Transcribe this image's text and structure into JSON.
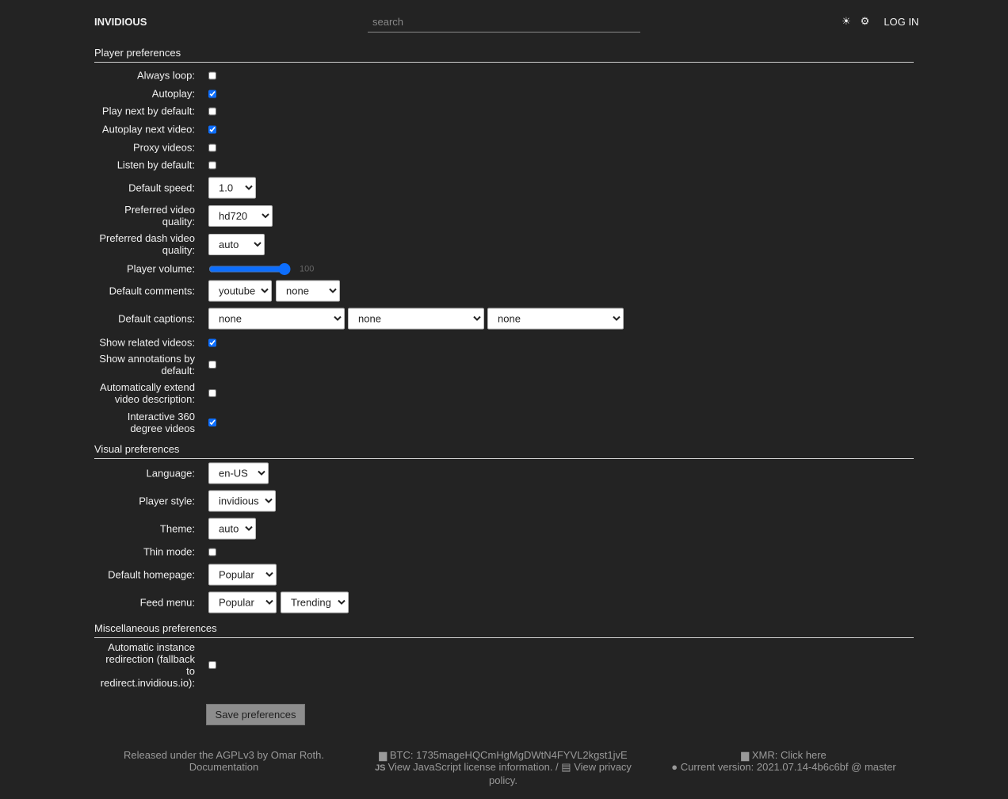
{
  "header": {
    "brand": "INVIDIOUS",
    "search_placeholder": "search",
    "theme_icon": "sun-icon",
    "settings_icon": "gear-icon",
    "theme_glyph": "☀",
    "settings_glyph": "⚙",
    "login": "LOG IN"
  },
  "player": {
    "title": "Player preferences",
    "always_loop": {
      "label": "Always loop:",
      "checked": false
    },
    "autoplay": {
      "label": "Autoplay:",
      "checked": true
    },
    "play_next": {
      "label": "Play next by default:",
      "checked": false
    },
    "autoplay_next": {
      "label": "Autoplay next video:",
      "checked": true
    },
    "proxy": {
      "label": "Proxy videos:",
      "checked": false
    },
    "listen": {
      "label": "Listen by default:",
      "checked": false
    },
    "speed": {
      "label": "Default speed:",
      "value": "1.0"
    },
    "quality": {
      "label": "Preferred video quality:",
      "value": "hd720"
    },
    "dash_quality": {
      "label": "Preferred dash video quality:",
      "value": "auto"
    },
    "volume": {
      "label": "Player volume:",
      "value": 100,
      "display": "100"
    },
    "comments": {
      "label": "Default comments:",
      "values": [
        "youtube",
        "none"
      ]
    },
    "captions": {
      "label": "Default captions:",
      "values": [
        "none",
        "none",
        "none"
      ]
    },
    "related": {
      "label": "Show related videos:",
      "checked": true
    },
    "annotations": {
      "label": "Show annotations by default:",
      "checked": false
    },
    "extend_desc": {
      "label": "Automatically extend video description:",
      "checked": false
    },
    "vr": {
      "label": "Interactive 360 degree videos",
      "checked": true
    }
  },
  "visual": {
    "title": "Visual preferences",
    "language": {
      "label": "Language:",
      "value": "en-US"
    },
    "player_style": {
      "label": "Player style:",
      "value": "invidious"
    },
    "theme": {
      "label": "Theme:",
      "value": "auto"
    },
    "thin": {
      "label": "Thin mode:",
      "checked": false
    },
    "homepage": {
      "label": "Default homepage:",
      "value": "Popular"
    },
    "feed_menu": {
      "label": "Feed menu:",
      "values": [
        "Popular",
        "Trending"
      ]
    }
  },
  "misc": {
    "title": "Miscellaneous preferences",
    "redirect": {
      "label": "Automatic instance redirection (fallback to redirect.invidious.io):",
      "checked": false
    }
  },
  "save_label": "Save preferences",
  "footer": {
    "license": "Released under the AGPLv3 by Omar Roth.",
    "documentation": "Documentation",
    "btc": "BTC: 1735mageHQCmHgMgDWtN4FYVL2kgst1jvE",
    "js_license": "View JavaScript license information.",
    "separator": " / ",
    "privacy": "View privacy policy.",
    "xmr": "XMR: Click here",
    "version": "Current version: 2021.07.14-4b6c6bf @ master"
  },
  "colors": {
    "background": "#232323",
    "accent": "#0d6efd"
  }
}
